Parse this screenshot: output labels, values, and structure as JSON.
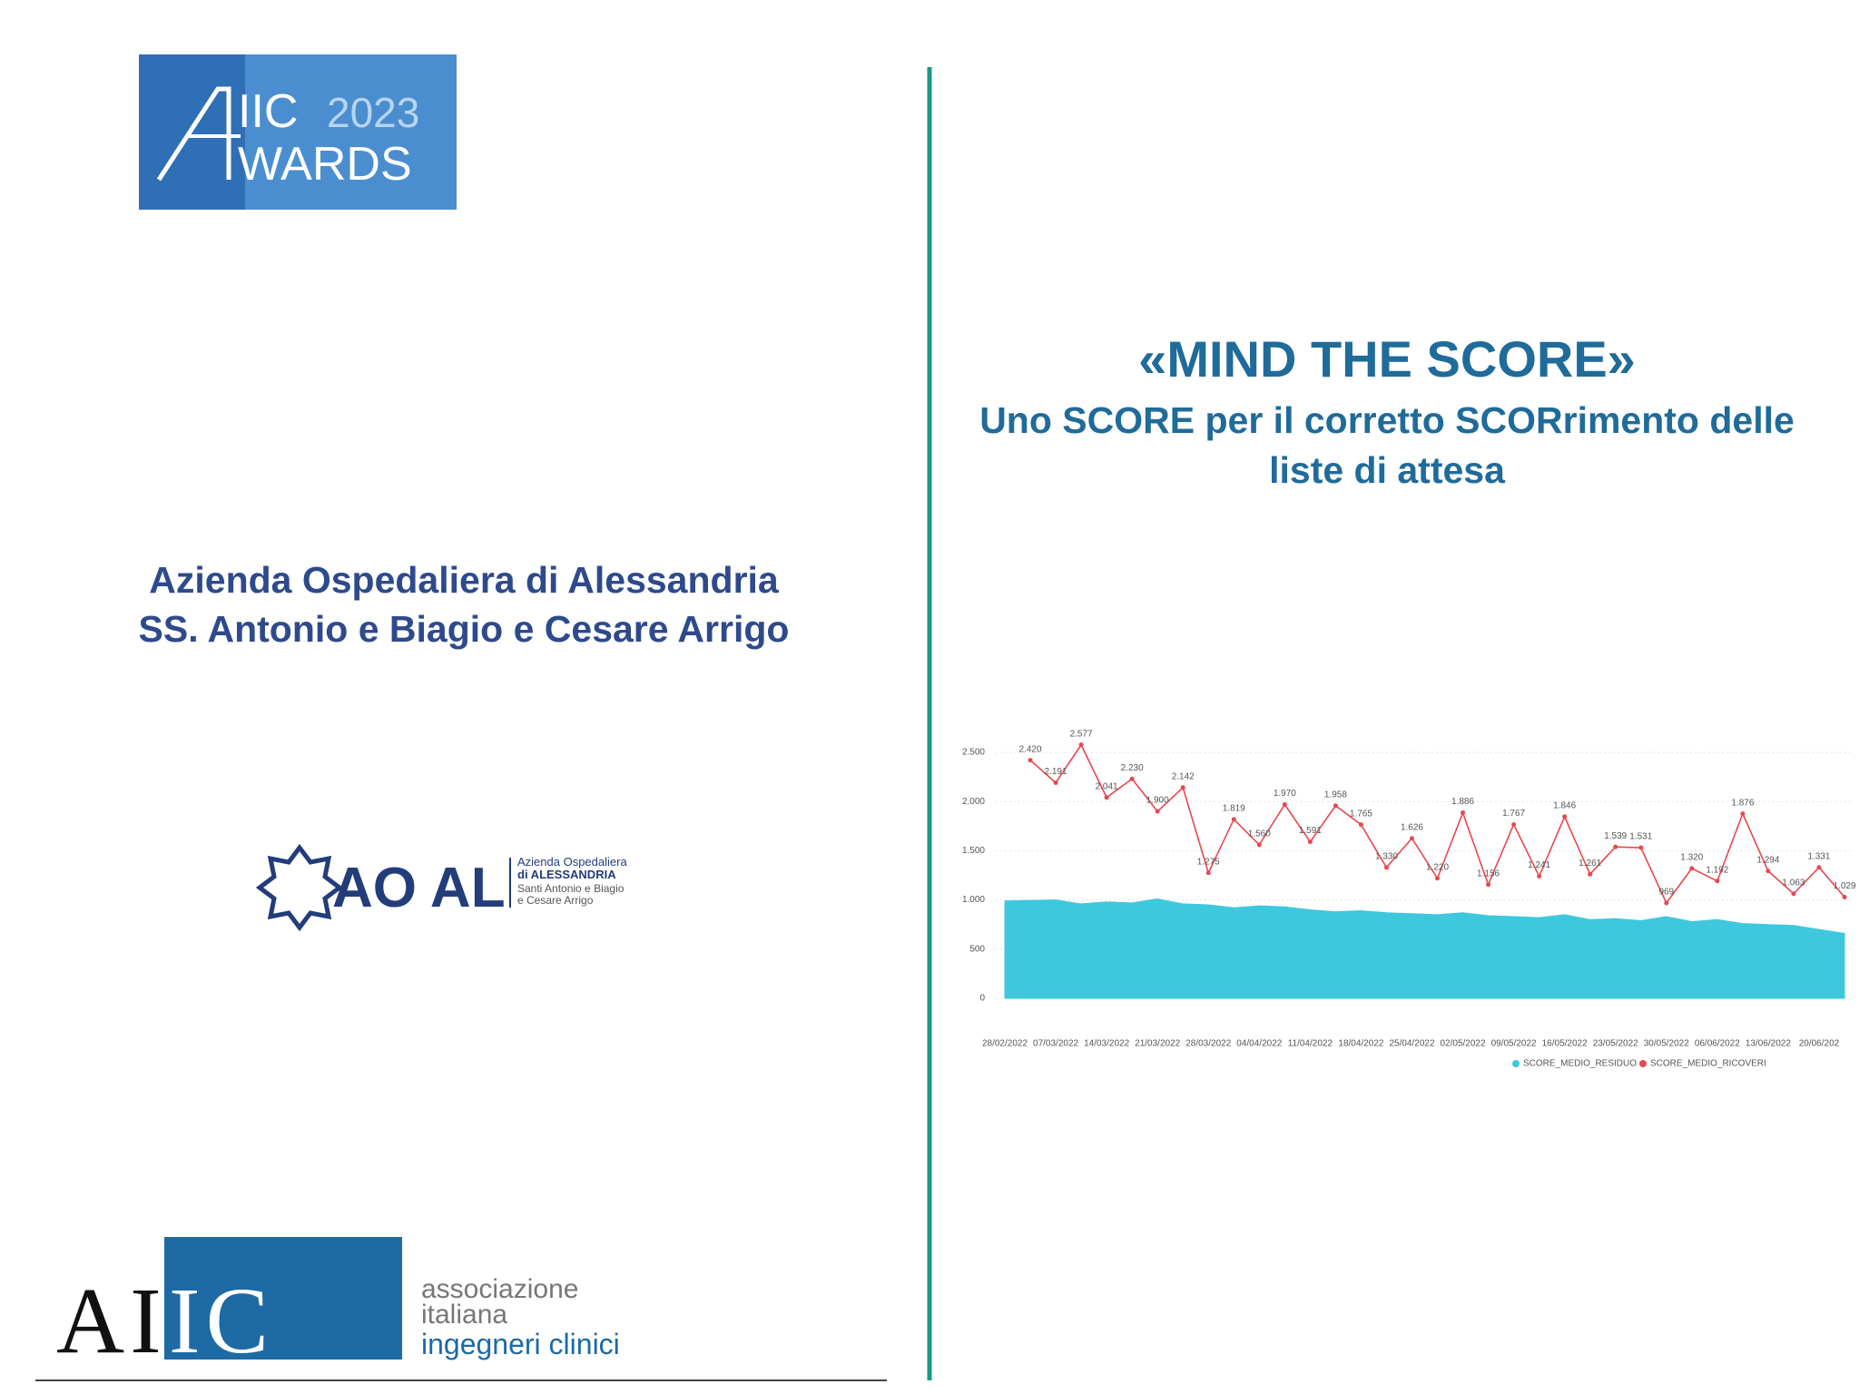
{
  "awards_logo": {
    "brand": "IIC",
    "year": "2023",
    "word": "WARDS"
  },
  "slide": {
    "title": "«MIND THE SCORE»",
    "subtitle_lines": [
      "Uno SCORE per il corretto SCORrimento delle",
      "liste di attesa"
    ],
    "hospital_lines": [
      "Azienda Ospedaliera di Alessandria",
      "SS. Antonio e Biagio e Cesare Arrigo"
    ]
  },
  "aoal_logo": {
    "mark": "AO AL",
    "lines": [
      "Azienda Ospedaliera",
      "di ALESSANDRIA",
      "Santi Antonio e Biagio",
      "e Cesare Arrigo"
    ]
  },
  "aiic_logo": {
    "dark": "AI",
    "light": "IC",
    "lines": [
      "associazione",
      "italiana",
      "ingegneri clinici"
    ]
  },
  "chart_data": {
    "type": "line",
    "categories": [
      "28/02/2022",
      null,
      "07/03/2022",
      null,
      "14/03/2022",
      null,
      "21/03/2022",
      null,
      "28/03/2022",
      null,
      "04/04/2022",
      null,
      "11/04/2022",
      null,
      "18/04/2022",
      null,
      "25/04/2022",
      null,
      "02/05/2022",
      null,
      "09/05/2022",
      null,
      "16/05/2022",
      null,
      "23/05/2022",
      null,
      "30/05/2022",
      null,
      "06/06/2022",
      null,
      "13/06/2022",
      null,
      "20/06/202",
      null
    ],
    "series": [
      {
        "name": "SCORE_MEDIO_RESIDUO",
        "color": "#3ec8dd",
        "style": "area",
        "values": [
          990,
          995,
          1000,
          960,
          980,
          970,
          1010,
          960,
          950,
          920,
          940,
          930,
          900,
          880,
          890,
          870,
          860,
          850,
          870,
          840,
          830,
          820,
          850,
          800,
          810,
          790,
          830,
          780,
          800,
          760,
          750,
          740,
          700,
          660
        ]
      },
      {
        "name": "SCORE_MEDIO_RICOVERI",
        "color": "#e8474f",
        "style": "line",
        "values": [
          null,
          2420,
          2191,
          2577,
          2041,
          2230,
          1900,
          2142,
          1275,
          1819,
          1560,
          1970,
          1591,
          1958,
          1765,
          1330,
          1626,
          1220,
          1886,
          1156,
          1767,
          1241,
          1846,
          1261,
          1539,
          1531,
          969,
          1320,
          1192,
          1876,
          1294,
          1063,
          1331,
          1029
        ],
        "value_labels": [
          null,
          "2.420",
          "2.191",
          "2.577",
          "2.041",
          "2.230",
          "1.900",
          "2.142",
          "1.275",
          "1.819",
          "1.560",
          "1.970",
          "1.591",
          "1.958",
          "1.765",
          "1.330",
          "1.626",
          "1.220",
          "1.886",
          "1.156",
          "1.767",
          "1.241",
          "1.846",
          "1.261",
          "1.539",
          "1.531",
          "969",
          "1.320",
          "1.192",
          "1.876",
          "1.294",
          "1.063",
          "1.331",
          "1.029"
        ]
      }
    ],
    "ylim": [
      0,
      2500
    ],
    "yticks": [
      0,
      500,
      {
        "value": 1000,
        "label": "1.000"
      },
      {
        "value": 1500,
        "label": "1.500"
      },
      {
        "value": 2000,
        "label": "2.000"
      },
      {
        "value": 2500,
        "label": "2.500"
      }
    ],
    "grid": true
  }
}
